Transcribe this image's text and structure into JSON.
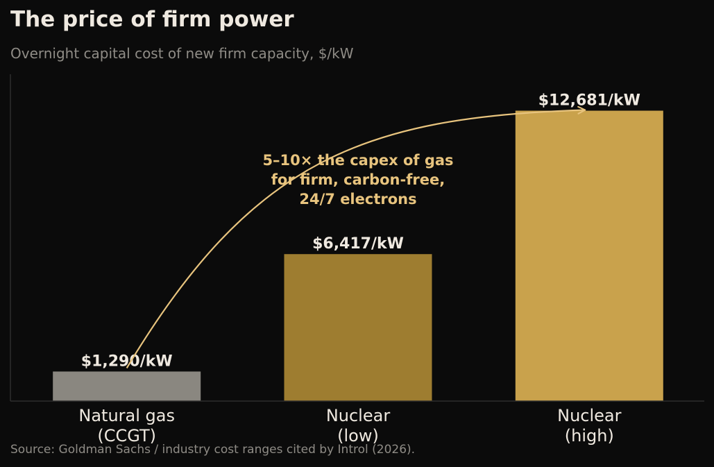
{
  "header": {
    "title": "The price of firm power",
    "subtitle": "Overnight capital cost of new firm capacity, $/kW"
  },
  "footer": {
    "source": "Source: Goldman Sachs / industry cost ranges cited by Introl (2026)."
  },
  "chart_data": {
    "type": "bar",
    "title": "The price of firm power",
    "subtitle": "Overnight capital cost of new firm capacity, $/kW",
    "xlabel": "",
    "ylabel": "",
    "categories": [
      [
        "Natural gas",
        "(CCGT)"
      ],
      [
        "Nuclear",
        "(low)"
      ],
      [
        "Nuclear",
        "(high)"
      ]
    ],
    "values": [
      1290,
      6417,
      12681
    ],
    "data_labels": [
      "$1,290/kW",
      "$6,417/kW",
      "$12,681/kW"
    ],
    "bar_colors": [
      "#8a8780",
      "#9e7d30",
      "#c9a24c"
    ],
    "ylim": [
      0,
      14300
    ],
    "grid": false,
    "y_axis_tick_labels_shown": false,
    "annotation": {
      "lines": [
        "5–10× the capex of gas",
        "for firm, carbon-free,",
        "24/7 electrons"
      ],
      "color": "#e8c47e",
      "arrow_from_category": 0,
      "arrow_to_category": 2
    },
    "colors": {
      "background": "#0b0b0b",
      "title": "#efe9e0",
      "muted_text": "#8f8c86",
      "axis": "#2e2e2e",
      "label_text": "#efe9e0"
    }
  }
}
